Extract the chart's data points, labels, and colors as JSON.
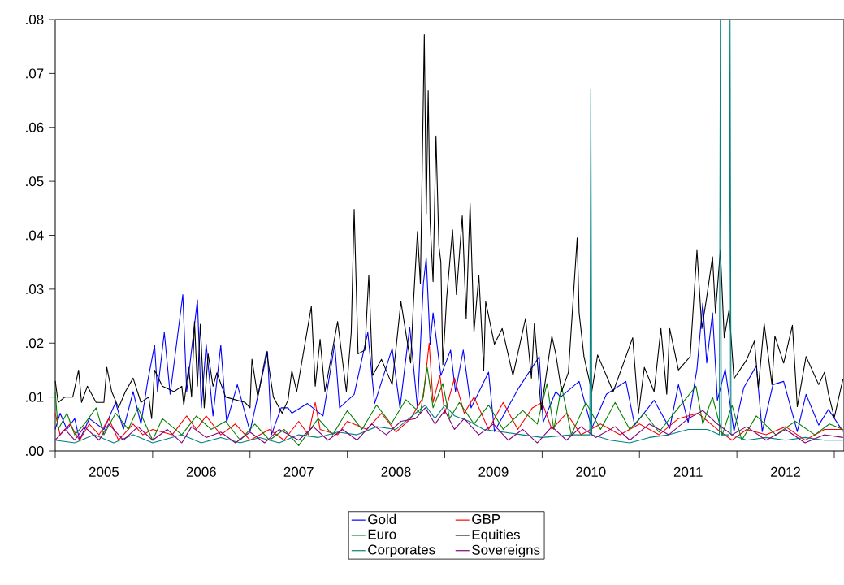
{
  "chart_data": {
    "type": "line",
    "xlim": [
      2005.0,
      2013.1
    ],
    "xticks": [
      {
        "value": 2005.0,
        "label": null
      },
      {
        "value": 2005.5,
        "label": "2005"
      },
      {
        "value": 2006.0,
        "label": null
      },
      {
        "value": 2006.5,
        "label": "2006"
      },
      {
        "value": 2007.0,
        "label": null
      },
      {
        "value": 2007.5,
        "label": "2007"
      },
      {
        "value": 2008.0,
        "label": null
      },
      {
        "value": 2008.5,
        "label": "2008"
      },
      {
        "value": 2009.0,
        "label": null
      },
      {
        "value": 2009.5,
        "label": "2009"
      },
      {
        "value": 2010.0,
        "label": null
      },
      {
        "value": 2010.5,
        "label": "2010"
      },
      {
        "value": 2011.0,
        "label": null
      },
      {
        "value": 2011.5,
        "label": "2011"
      },
      {
        "value": 2012.0,
        "label": null
      },
      {
        "value": 2012.5,
        "label": "2012"
      },
      {
        "value": 2013.0,
        "label": null
      }
    ],
    "ylim": [
      0,
      0.08
    ],
    "yticks": [
      {
        "value": 0,
        "label": ".00"
      },
      {
        "value": 0.01,
        "label": ".01"
      },
      {
        "value": 0.02,
        "label": ".02"
      },
      {
        "value": 0.03,
        "label": ".03"
      },
      {
        "value": 0.04,
        "label": ".04"
      },
      {
        "value": 0.05,
        "label": ".05"
      },
      {
        "value": 0.06,
        "label": ".06"
      },
      {
        "value": 0.07,
        "label": ".07"
      },
      {
        "value": 0.08,
        "label": ".08"
      }
    ],
    "legend": "bottom",
    "grid": false,
    "line_style": "solid",
    "series": [
      {
        "name": "Gold",
        "color": "#0000ff",
        "x": [
          2005.0,
          2005.05,
          2005.12,
          2005.2,
          2005.25,
          2005.35,
          2005.5,
          2005.62,
          2005.7,
          2005.8,
          2005.88,
          2005.95,
          2006.02,
          2006.05,
          2006.12,
          2006.18,
          2006.31,
          2006.35,
          2006.46,
          2006.5,
          2006.55,
          2006.62,
          2006.7,
          2006.76,
          2006.87,
          2007.0,
          2007.18,
          2007.22,
          2007.32,
          2007.39,
          2007.43,
          2007.59,
          2007.75,
          2007.87,
          2007.92,
          2008.07,
          2008.21,
          2008.28,
          2008.46,
          2008.54,
          2008.64,
          2008.72,
          2008.78,
          2008.81,
          2008.85,
          2008.88,
          2008.96,
          2009.06,
          2009.11,
          2009.19,
          2009.27,
          2009.45,
          2009.51,
          2009.76,
          2009.97,
          2010.01,
          2010.14,
          2010.19,
          2010.38,
          2010.51,
          2010.66,
          2010.86,
          2010.95,
          2011.15,
          2011.31,
          2011.4,
          2011.5,
          2011.59,
          2011.65,
          2011.69,
          2011.75,
          2011.8,
          2011.88,
          2011.97,
          2012.07,
          2012.2,
          2012.26,
          2012.37,
          2012.48,
          2012.62,
          2012.71,
          2012.84,
          2012.94,
          2013.09
        ],
        "values": [
          0.004,
          0.007,
          0.004,
          0.006,
          0.002,
          0.006,
          0.004,
          0.009,
          0.004,
          0.011,
          0.005,
          0.013,
          0.0196,
          0.011,
          0.022,
          0.0105,
          0.029,
          0.011,
          0.028,
          0.008,
          0.0198,
          0.0065,
          0.0196,
          0.0053,
          0.0123,
          0.0036,
          0.0184,
          0.003,
          0.008,
          0.008,
          0.007,
          0.0088,
          0.0065,
          0.0198,
          0.008,
          0.0105,
          0.022,
          0.0088,
          0.019,
          0.008,
          0.023,
          0.008,
          0.031,
          0.0358,
          0.0198,
          0.0256,
          0.014,
          0.0187,
          0.011,
          0.0187,
          0.008,
          0.0146,
          0.0036,
          0.0117,
          0.0175,
          0.0053,
          0.011,
          0.01,
          0.0129,
          0.0042,
          0.0105,
          0.0129,
          0.0048,
          0.0094,
          0.0042,
          0.0123,
          0.0053,
          0.0152,
          0.0274,
          0.0163,
          0.0256,
          0.0094,
          0.0152,
          0.0036,
          0.0117,
          0.0158,
          0.0036,
          0.0123,
          0.0129,
          0.0036,
          0.0105,
          0.0048,
          0.0077,
          0.0036
        ]
      },
      {
        "name": "GBP",
        "color": "#ff0000",
        "x": [
          2005.0,
          2005.05,
          2005.15,
          2005.25,
          2005.35,
          2005.45,
          2005.55,
          2005.65,
          2005.8,
          2005.9,
          2006.0,
          2006.2,
          2006.35,
          2006.45,
          2006.55,
          2006.7,
          2006.85,
          2007.0,
          2007.2,
          2007.35,
          2007.5,
          2007.6,
          2007.67,
          2007.72,
          2007.9,
          2008.0,
          2008.2,
          2008.35,
          2008.5,
          2008.65,
          2008.78,
          2008.84,
          2008.88,
          2008.95,
          2009.0,
          2009.1,
          2009.2,
          2009.3,
          2009.45,
          2009.6,
          2009.75,
          2009.9,
          2010.0,
          2010.1,
          2010.25,
          2010.4,
          2010.6,
          2010.8,
          2011.0,
          2011.2,
          2011.4,
          2011.6,
          2011.8,
          2011.95,
          2012.1,
          2012.3,
          2012.5,
          2012.7,
          2012.9,
          2013.09
        ],
        "values": [
          0.007,
          0.003,
          0.005,
          0.002,
          0.005,
          0.003,
          0.006,
          0.002,
          0.005,
          0.003,
          0.004,
          0.003,
          0.0065,
          0.004,
          0.0065,
          0.003,
          0.005,
          0.002,
          0.004,
          0.002,
          0.0055,
          0.003,
          0.009,
          0.004,
          0.003,
          0.0055,
          0.004,
          0.007,
          0.0035,
          0.006,
          0.01,
          0.02,
          0.009,
          0.014,
          0.007,
          0.0135,
          0.007,
          0.01,
          0.004,
          0.009,
          0.004,
          0.008,
          0.009,
          0.004,
          0.007,
          0.003,
          0.005,
          0.003,
          0.005,
          0.003,
          0.006,
          0.007,
          0.004,
          0.002,
          0.004,
          0.003,
          0.0045,
          0.002,
          0.004,
          0.004
        ]
      },
      {
        "name": "Euro",
        "color": "#008000",
        "x": [
          2005.0,
          2005.03,
          2005.12,
          2005.2,
          2005.3,
          2005.42,
          2005.5,
          2005.62,
          2005.75,
          2005.85,
          2006.0,
          2006.1,
          2006.3,
          2006.45,
          2006.6,
          2006.75,
          2006.9,
          2007.05,
          2007.2,
          2007.35,
          2007.5,
          2007.7,
          2007.85,
          2008.0,
          2008.15,
          2008.3,
          2008.45,
          2008.6,
          2008.75,
          2008.82,
          2008.88,
          2008.98,
          2009.05,
          2009.15,
          2009.3,
          2009.45,
          2009.6,
          2009.8,
          2009.95,
          2010.05,
          2010.12,
          2010.2,
          2010.3,
          2010.45,
          2010.6,
          2010.75,
          2010.9,
          2011.05,
          2011.2,
          2011.4,
          2011.58,
          2011.65,
          2011.75,
          2011.85,
          2011.95,
          2012.05,
          2012.2,
          2012.4,
          2012.6,
          2012.8,
          2012.95,
          2013.09
        ],
        "values": [
          0.011,
          0.004,
          0.007,
          0.003,
          0.005,
          0.008,
          0.003,
          0.007,
          0.004,
          0.008,
          0.002,
          0.006,
          0.003,
          0.0065,
          0.004,
          0.0055,
          0.002,
          0.005,
          0.002,
          0.004,
          0.001,
          0.006,
          0.003,
          0.0075,
          0.004,
          0.0085,
          0.005,
          0.0095,
          0.007,
          0.0155,
          0.008,
          0.0125,
          0.006,
          0.009,
          0.005,
          0.0085,
          0.004,
          0.0075,
          0.005,
          0.0125,
          0.004,
          0.012,
          0.003,
          0.009,
          0.004,
          0.009,
          0.004,
          0.007,
          0.0035,
          0.008,
          0.012,
          0.005,
          0.01,
          0.003,
          0.0085,
          0.002,
          0.0065,
          0.003,
          0.0055,
          0.003,
          0.005,
          0.004
        ]
      },
      {
        "name": "Equities",
        "color": "#000000",
        "x": [
          2005.0,
          2005.03,
          2005.1,
          2005.18,
          2005.24,
          2005.27,
          2005.33,
          2005.42,
          2005.5,
          2005.53,
          2005.58,
          2005.65,
          2005.72,
          2005.8,
          2005.88,
          2005.96,
          2005.99,
          2006.02,
          2006.1,
          2006.22,
          2006.3,
          2006.32,
          2006.37,
          2006.4,
          2006.43,
          2006.46,
          2006.49,
          2006.53,
          2006.57,
          2006.62,
          2006.66,
          2006.75,
          2006.95,
          2007.0,
          2007.02,
          2007.08,
          2007.17,
          2007.24,
          2007.33,
          2007.39,
          2007.43,
          2007.48,
          2007.63,
          2007.67,
          2007.72,
          2007.77,
          2007.9,
          2007.99,
          2008.04,
          2008.07,
          2008.11,
          2008.18,
          2008.22,
          2008.26,
          2008.35,
          2008.46,
          2008.55,
          2008.65,
          2008.68,
          2008.72,
          2008.75,
          2008.79,
          2008.81,
          2008.83,
          2008.85,
          2008.88,
          2008.91,
          2008.94,
          2008.96,
          2008.98,
          2009.02,
          2009.08,
          2009.12,
          2009.18,
          2009.22,
          2009.26,
          2009.3,
          2009.35,
          2009.4,
          2009.42,
          2009.51,
          2009.59,
          2009.7,
          2009.83,
          2009.89,
          2009.92,
          2009.99,
          2010.1,
          2010.14,
          2010.2,
          2010.27,
          2010.36,
          2010.38,
          2010.43,
          2010.51,
          2010.57,
          2010.73,
          2010.93,
          2010.99,
          2011.05,
          2011.15,
          2011.22,
          2011.28,
          2011.31,
          2011.4,
          2011.52,
          2011.59,
          2011.64,
          2011.69,
          2011.75,
          2011.78,
          2011.83,
          2011.87,
          2011.92,
          2011.97,
          2012.1,
          2012.18,
          2012.22,
          2012.28,
          2012.36,
          2012.39,
          2012.48,
          2012.57,
          2012.62,
          2012.71,
          2012.84,
          2012.9,
          2012.94,
          2013.0,
          2013.06,
          2013.09
        ],
        "values": [
          0.013,
          0.009,
          0.01,
          0.01,
          0.015,
          0.009,
          0.012,
          0.009,
          0.009,
          0.0155,
          0.011,
          0.008,
          0.011,
          0.0135,
          0.009,
          0.01,
          0.006,
          0.015,
          0.012,
          0.011,
          0.012,
          0.0085,
          0.0155,
          0.01,
          0.024,
          0.012,
          0.0235,
          0.008,
          0.018,
          0.012,
          0.0145,
          0.01,
          0.009,
          0.008,
          0.017,
          0.01,
          0.0185,
          0.01,
          0.007,
          0.0094,
          0.0149,
          0.011,
          0.0268,
          0.012,
          0.0207,
          0.011,
          0.024,
          0.011,
          0.022,
          0.0448,
          0.018,
          0.0187,
          0.0326,
          0.014,
          0.017,
          0.0123,
          0.0277,
          0.0163,
          0.028,
          0.0407,
          0.031,
          0.0772,
          0.044,
          0.0668,
          0.0424,
          0.0314,
          0.0584,
          0.038,
          0.035,
          0.016,
          0.0285,
          0.041,
          0.029,
          0.0436,
          0.0245,
          0.0459,
          0.022,
          0.0326,
          0.015,
          0.0277,
          0.0198,
          0.0227,
          0.014,
          0.0246,
          0.0135,
          0.0236,
          0.0077,
          0.0213,
          0.018,
          0.011,
          0.0146,
          0.0395,
          0.0256,
          0.0175,
          0.011,
          0.0178,
          0.011,
          0.021,
          0.007,
          0.0155,
          0.011,
          0.0227,
          0.0105,
          0.0227,
          0.015,
          0.0175,
          0.0372,
          0.0227,
          0.0285,
          0.036,
          0.0256,
          0.0372,
          0.021,
          0.0262,
          0.0134,
          0.0169,
          0.0204,
          0.0117,
          0.0236,
          0.0123,
          0.0213,
          0.0163,
          0.0233,
          0.0082,
          0.0175,
          0.0123,
          0.0146,
          0.0106,
          0.0062,
          0.011,
          0.0134
        ]
      },
      {
        "name": "Corporates",
        "color": "#008080",
        "x": [
          2005.0,
          2005.2,
          2005.4,
          2005.6,
          2005.8,
          2006.0,
          2006.3,
          2006.5,
          2006.7,
          2006.9,
          2007.1,
          2007.3,
          2007.5,
          2007.7,
          2007.9,
          2008.1,
          2008.3,
          2008.5,
          2008.7,
          2008.8,
          2008.9,
          2009.0,
          2009.1,
          2009.25,
          2009.4,
          2009.6,
          2009.8,
          2010.0,
          2010.3,
          2010.49,
          2010.5,
          2010.51,
          2010.7,
          2010.9,
          2011.1,
          2011.3,
          2011.5,
          2011.7,
          2011.82,
          2011.83,
          2011.84,
          2011.92,
          2011.93,
          2011.94,
          2012.1,
          2012.3,
          2012.5,
          2012.7,
          2012.9,
          2013.09
        ],
        "values": [
          0.002,
          0.0015,
          0.003,
          0.0015,
          0.003,
          0.0015,
          0.003,
          0.0015,
          0.0025,
          0.0015,
          0.0025,
          0.0015,
          0.003,
          0.0025,
          0.0035,
          0.003,
          0.0045,
          0.004,
          0.007,
          0.0085,
          0.006,
          0.0085,
          0.0065,
          0.0055,
          0.004,
          0.0035,
          0.003,
          0.0025,
          0.003,
          0.003,
          0.067,
          0.003,
          0.002,
          0.0015,
          0.0025,
          0.003,
          0.004,
          0.004,
          0.003,
          0.08,
          0.003,
          0.003,
          0.08,
          0.003,
          0.002,
          0.0025,
          0.002,
          0.0025,
          0.002,
          0.002
        ]
      },
      {
        "name": "Sovereigns",
        "color": "#800080",
        "x": [
          2005.0,
          2005.1,
          2005.2,
          2005.3,
          2005.45,
          2005.55,
          2005.7,
          2005.85,
          2006.0,
          2006.15,
          2006.3,
          2006.4,
          2006.55,
          2006.7,
          2006.85,
          2007.0,
          2007.15,
          2007.3,
          2007.5,
          2007.65,
          2007.8,
          2007.95,
          2008.1,
          2008.25,
          2008.4,
          2008.55,
          2008.7,
          2008.8,
          2008.9,
          2009.0,
          2009.1,
          2009.2,
          2009.35,
          2009.5,
          2009.65,
          2009.8,
          2009.95,
          2010.1,
          2010.25,
          2010.4,
          2010.55,
          2010.75,
          2010.9,
          2011.1,
          2011.3,
          2011.5,
          2011.65,
          2011.8,
          2011.95,
          2012.1,
          2012.3,
          2012.5,
          2012.7,
          2012.9,
          2013.09
        ],
        "values": [
          0.002,
          0.004,
          0.002,
          0.0045,
          0.002,
          0.005,
          0.002,
          0.0045,
          0.002,
          0.004,
          0.0015,
          0.0045,
          0.0025,
          0.0035,
          0.0015,
          0.0035,
          0.0015,
          0.004,
          0.002,
          0.0045,
          0.002,
          0.004,
          0.002,
          0.005,
          0.003,
          0.0055,
          0.006,
          0.008,
          0.005,
          0.0075,
          0.004,
          0.006,
          0.003,
          0.005,
          0.002,
          0.004,
          0.0015,
          0.0045,
          0.002,
          0.0045,
          0.0025,
          0.0045,
          0.002,
          0.005,
          0.003,
          0.006,
          0.0075,
          0.005,
          0.003,
          0.0045,
          0.002,
          0.004,
          0.0015,
          0.003,
          0.0025
        ]
      }
    ]
  }
}
